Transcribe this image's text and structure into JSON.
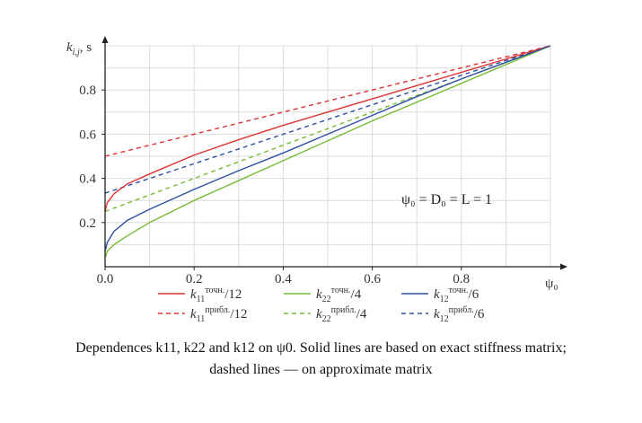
{
  "chart_data": {
    "type": "line",
    "ylabel_main": "k",
    "ylabel_sub": "i,j",
    "ylabel_unit": ", s",
    "xlabel": "ψ₀",
    "x_ticks": [
      "0.0",
      "0.2",
      "0.4",
      "0.6",
      "0.8"
    ],
    "y_ticks": [
      "0.2",
      "0.4",
      "0.6",
      "0.8"
    ],
    "xlim": [
      0,
      1
    ],
    "ylim": [
      0,
      1
    ],
    "grid": true,
    "annotation": "ψ₀ = D₀ = L = 1",
    "legend_position": "bottom",
    "series": [
      {
        "name": "k11 exact / 12",
        "base": "k",
        "sub": "11",
        "sup": "точн.",
        "suffix": "/12",
        "color": "#dd3333",
        "dash": false,
        "x": [
          0,
          0.005,
          0.02,
          0.05,
          0.1,
          0.2,
          0.3,
          0.4,
          0.5,
          0.6,
          0.7,
          0.8,
          0.9,
          1.0
        ],
        "values": [
          0.25,
          0.29,
          0.33,
          0.375,
          0.42,
          0.505,
          0.575,
          0.64,
          0.7,
          0.76,
          0.82,
          0.88,
          0.94,
          1.0
        ]
      },
      {
        "name": "k11 approx / 12",
        "base": "k",
        "sub": "11",
        "sup": "прибл.",
        "suffix": "/12",
        "color": "#dd3333",
        "dash": true,
        "x": [
          0,
          1
        ],
        "values": [
          0.5,
          1.0
        ]
      },
      {
        "name": "k22 exact / 4",
        "base": "k",
        "sub": "22",
        "sup": "точн.",
        "suffix": "/4",
        "color": "#77bb33",
        "dash": false,
        "x": [
          0,
          0.005,
          0.02,
          0.05,
          0.1,
          0.2,
          0.3,
          0.4,
          0.5,
          0.6,
          0.7,
          0.8,
          0.9,
          1.0
        ],
        "values": [
          0.04,
          0.07,
          0.1,
          0.14,
          0.2,
          0.3,
          0.39,
          0.48,
          0.57,
          0.66,
          0.745,
          0.83,
          0.915,
          1.0
        ]
      },
      {
        "name": "k22 approx / 4",
        "base": "k",
        "sub": "22",
        "sup": "прибл.",
        "suffix": "/4",
        "color": "#77bb33",
        "dash": true,
        "x": [
          0,
          1
        ],
        "values": [
          0.25,
          1.0
        ]
      },
      {
        "name": "k12 exact / 6",
        "base": "k",
        "sub": "12",
        "sup": "точн.",
        "suffix": "/6",
        "color": "#2e4fa0",
        "dash": false,
        "x": [
          0,
          0.005,
          0.02,
          0.05,
          0.1,
          0.2,
          0.3,
          0.4,
          0.5,
          0.6,
          0.7,
          0.8,
          0.9,
          1.0
        ],
        "values": [
          0.07,
          0.11,
          0.16,
          0.21,
          0.26,
          0.35,
          0.435,
          0.515,
          0.6,
          0.685,
          0.77,
          0.85,
          0.925,
          1.0
        ]
      },
      {
        "name": "k12 approx / 6",
        "base": "k",
        "sub": "12",
        "sup": "прибл.",
        "suffix": "/6",
        "color": "#2e4fa0",
        "dash": true,
        "x": [
          0,
          1
        ],
        "values": [
          0.333,
          1.0
        ]
      }
    ],
    "legend_order": [
      0,
      2,
      4,
      1,
      3,
      5
    ]
  },
  "caption": {
    "line1": "Dependences k11, k22 and k12 on ψ0. Solid lines are based on exact stiffness matrix;",
    "line2": "dashed lines — on approximate matrix"
  }
}
